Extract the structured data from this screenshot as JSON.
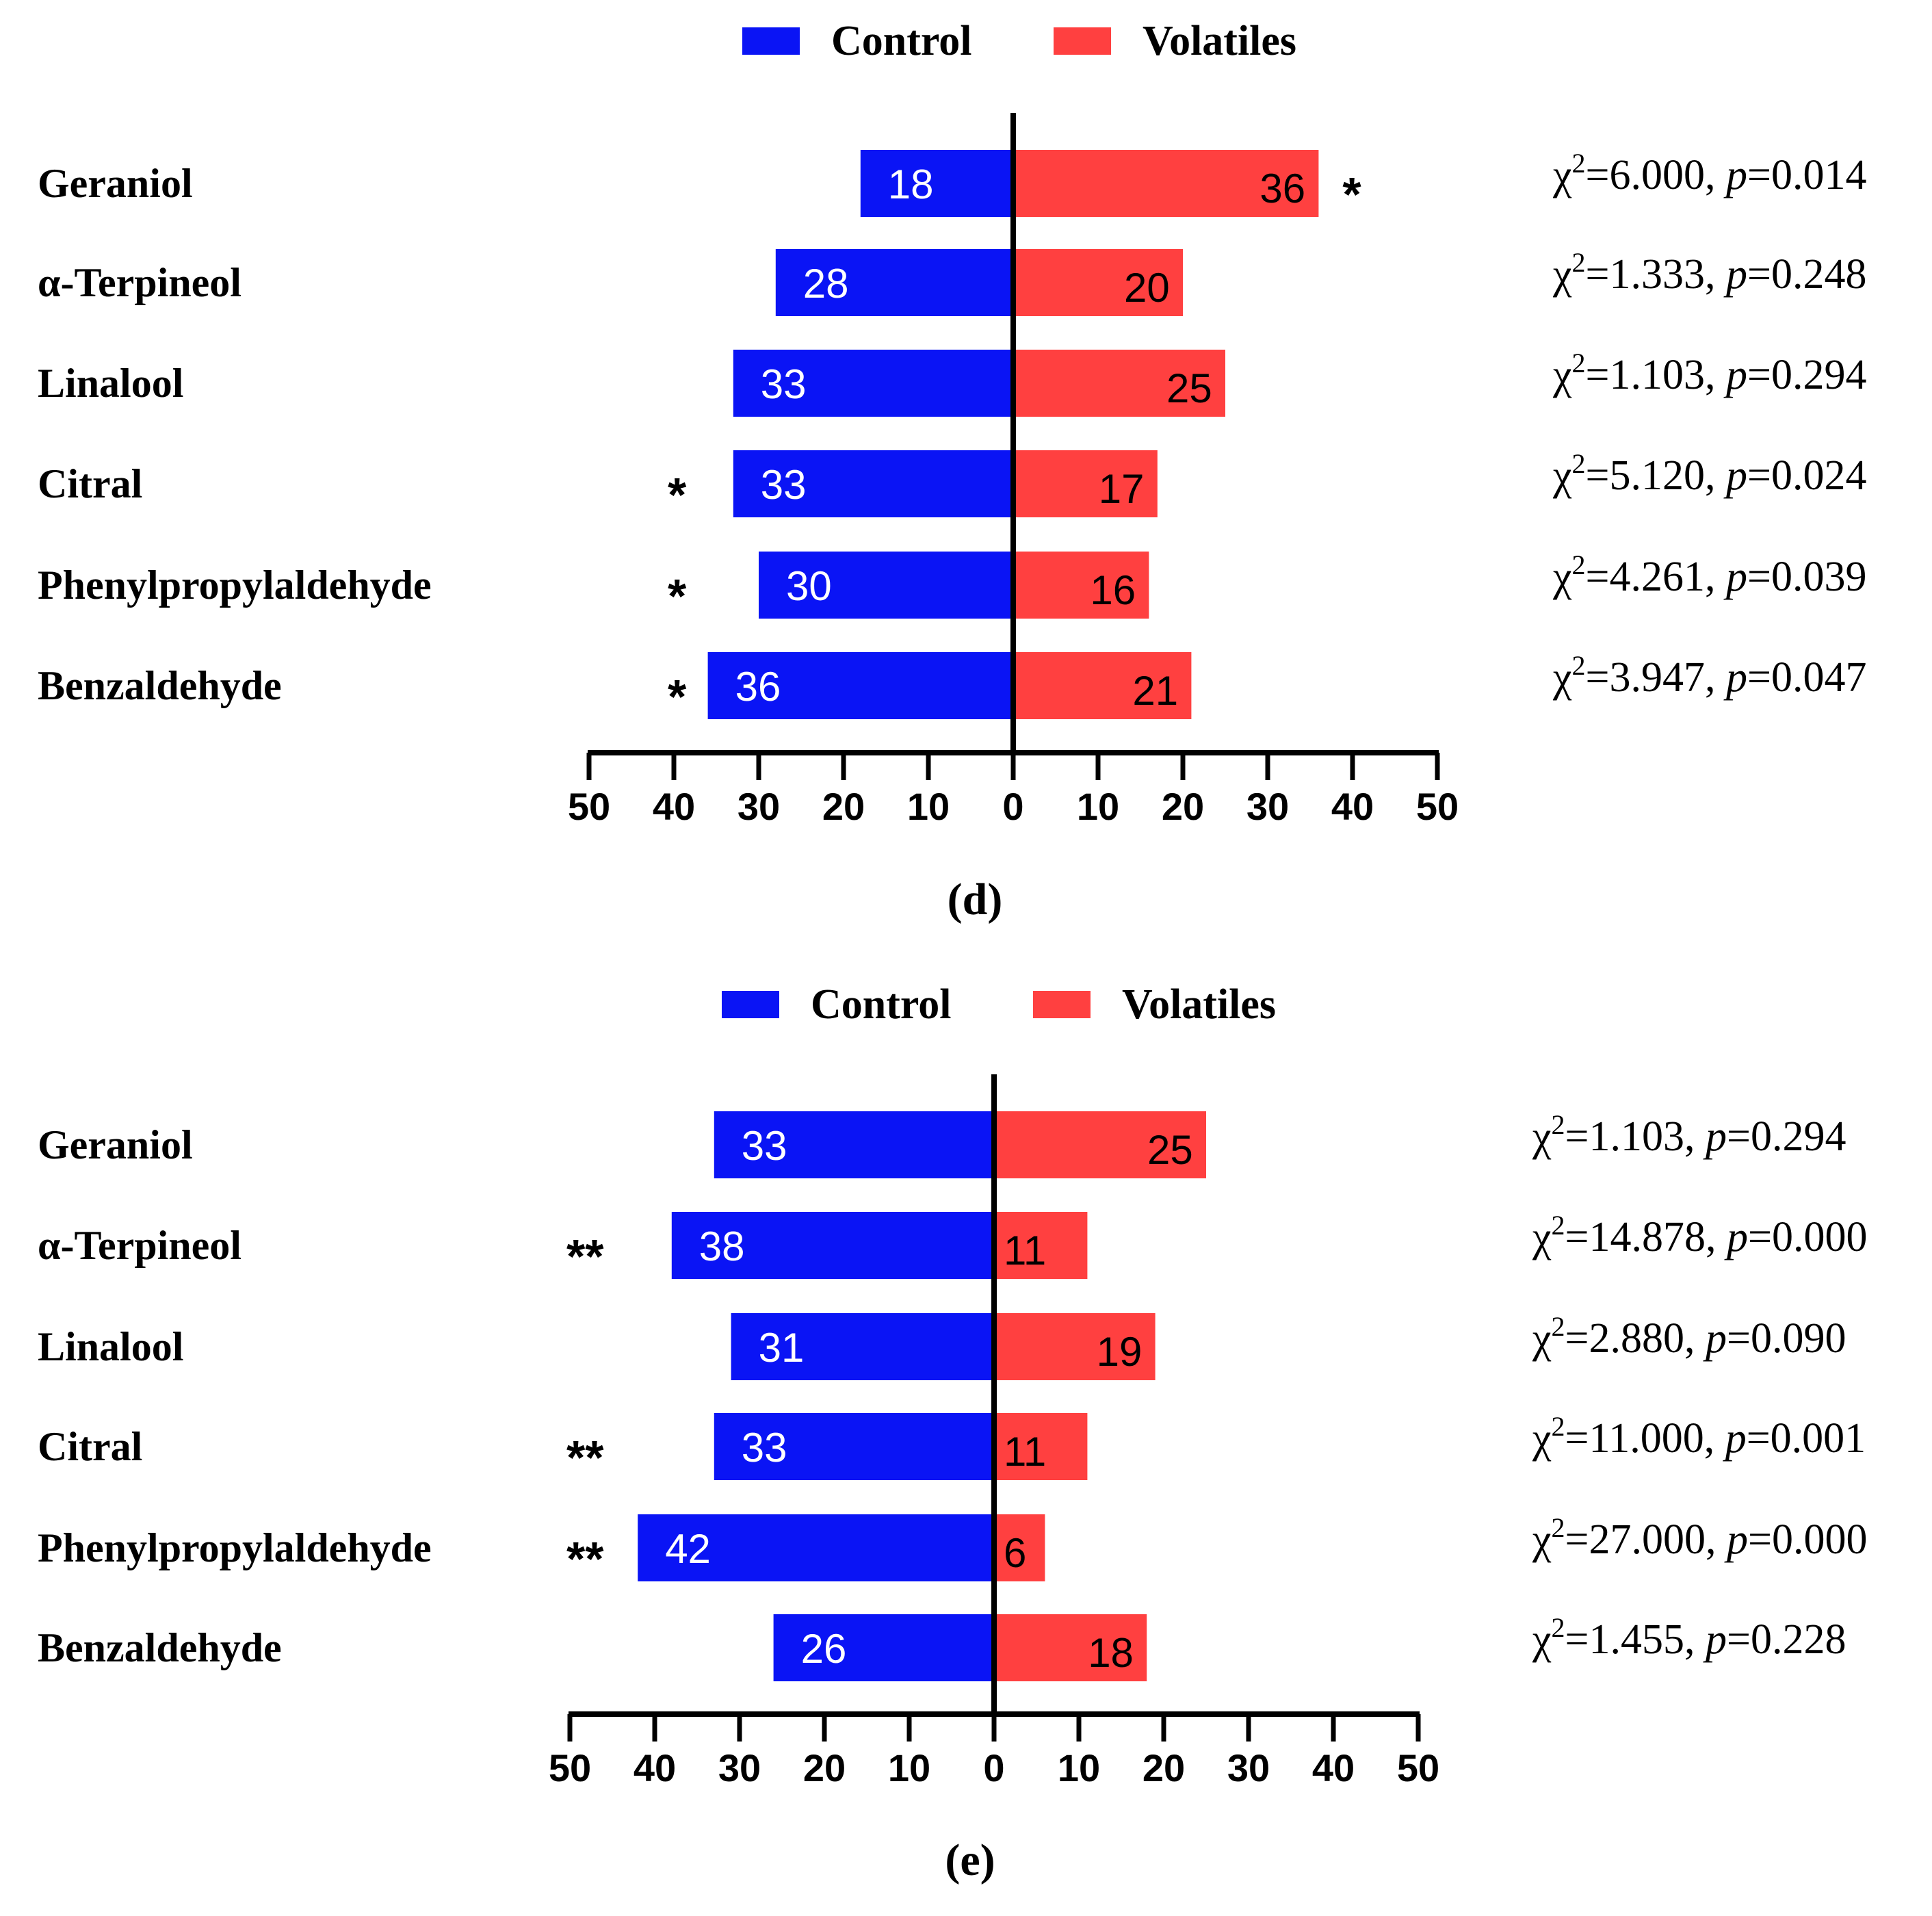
{
  "colors": {
    "control": "#0a14f5",
    "volatiles": "#ff4040",
    "axis": "#000000"
  },
  "chart_data": [
    {
      "type": "bar",
      "orientation": "horizontal-diverging",
      "panel_label": "(d)",
      "legend": [
        "Control",
        "Volatiles"
      ],
      "legend_placement": "top-center",
      "categories": [
        "Geraniol",
        "α-Terpineol",
        "Linalool",
        "Citral",
        "Phenylpropylaldehyde",
        "Benzaldehyde"
      ],
      "series": [
        {
          "name": "Control",
          "values": [
            18,
            28,
            33,
            33,
            30,
            36
          ]
        },
        {
          "name": "Volatiles",
          "values": [
            36,
            20,
            25,
            17,
            16,
            21
          ]
        }
      ],
      "significance": [
        {
          "category": "Geraniol",
          "side": "Volatiles",
          "mark": "*"
        },
        {
          "category": "Citral",
          "side": "Control",
          "mark": "*"
        },
        {
          "category": "Phenylpropylaldehyde",
          "side": "Control",
          "mark": "*"
        },
        {
          "category": "Benzaldehyde",
          "side": "Control",
          "mark": "*"
        }
      ],
      "stats": [
        {
          "chi2": "=6.000",
          "p": "=0.014"
        },
        {
          "chi2": "=1.333",
          "p": "=0.248"
        },
        {
          "chi2": "=1.103",
          "p": "=0.294"
        },
        {
          "chi2": "=5.120",
          "p": "=0.024"
        },
        {
          "chi2": "=4.261",
          "p": "=0.039"
        },
        {
          "chi2": "=3.947",
          "p": "=0.047"
        }
      ],
      "xlim": [
        -50,
        50
      ],
      "xticks": [
        "50",
        "40",
        "30",
        "20",
        "10",
        "0",
        "10",
        "20",
        "30",
        "40",
        "50"
      ],
      "grid": false
    },
    {
      "type": "bar",
      "orientation": "horizontal-diverging",
      "panel_label": "(e)",
      "legend": [
        "Control",
        "Volatiles"
      ],
      "legend_placement": "top-center",
      "categories": [
        "Geraniol",
        "α-Terpineol",
        "Linalool",
        "Citral",
        "Phenylpropylaldehyde",
        "Benzaldehyde"
      ],
      "series": [
        {
          "name": "Control",
          "values": [
            33,
            38,
            31,
            33,
            42,
            26
          ]
        },
        {
          "name": "Volatiles",
          "values": [
            25,
            11,
            19,
            11,
            6,
            18
          ]
        }
      ],
      "significance": [
        {
          "category": "α-Terpineol",
          "side": "Control",
          "mark": "**"
        },
        {
          "category": "Citral",
          "side": "Control",
          "mark": "**"
        },
        {
          "category": "Phenylpropylaldehyde",
          "side": "Control",
          "mark": "**"
        }
      ],
      "stats": [
        {
          "chi2": "=1.103",
          "p": "=0.294"
        },
        {
          "chi2": "=14.878",
          "p": "=0.000"
        },
        {
          "chi2": "=2.880",
          "p": "=0.090"
        },
        {
          "chi2": "=11.000",
          "p": "=0.001"
        },
        {
          "chi2": "=27.000",
          "p": "=0.000"
        },
        {
          "chi2": "=1.455",
          "p": "=0.228"
        }
      ],
      "xlim": [
        -50,
        50
      ],
      "xticks": [
        "50",
        "40",
        "30",
        "20",
        "10",
        "0",
        "10",
        "20",
        "30",
        "40",
        "50"
      ],
      "grid": false
    }
  ]
}
